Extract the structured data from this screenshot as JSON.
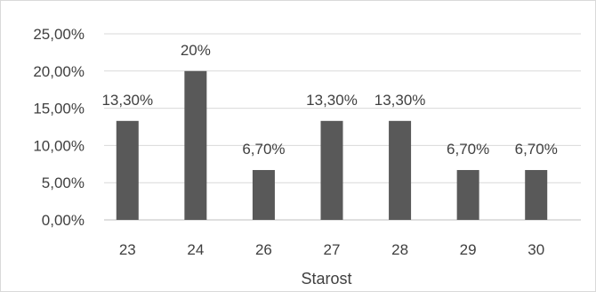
{
  "chart_data": {
    "type": "bar",
    "categories": [
      "23",
      "24",
      "26",
      "27",
      "28",
      "29",
      "30"
    ],
    "values": [
      13.3,
      20,
      6.7,
      13.3,
      13.3,
      6.7,
      6.7
    ],
    "data_labels": [
      "13,30%",
      "20%",
      "6,70%",
      "13,30%",
      "13,30%",
      "6,70%",
      "6,70%"
    ],
    "xlabel": "Starost",
    "ylim": [
      0,
      25
    ],
    "yticks": [
      0,
      5,
      10,
      15,
      20,
      25
    ],
    "ytick_labels": [
      "0,00%",
      "5,00%",
      "10,00%",
      "15,00%",
      "20,00%",
      "25,00%"
    ],
    "grid": true,
    "legend": "none",
    "colors": {
      "bar": "#595959",
      "grid": "#d9d9d9",
      "axis": "#bfbfbf",
      "text": "#404040"
    }
  }
}
